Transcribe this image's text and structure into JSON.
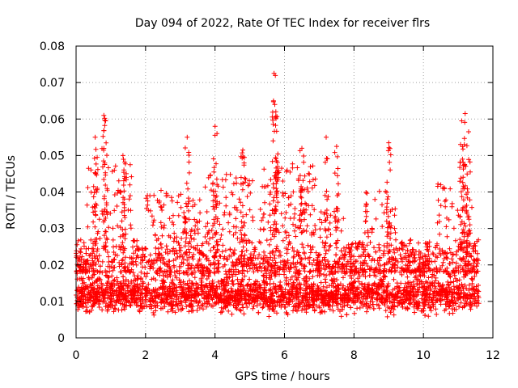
{
  "chart_data": {
    "type": "scatter",
    "title": "Day 094 of 2022, Rate Of TEC Index for receiver flrs",
    "xlabel": "GPS time / hours",
    "ylabel": "ROTI / TECUs",
    "xlim": [
      0,
      12
    ],
    "ylim": [
      0,
      0.08
    ],
    "x_ticks": [
      0,
      2,
      4,
      6,
      8,
      10,
      12
    ],
    "y_ticks": [
      0,
      0.01,
      0.02,
      0.03,
      0.04,
      0.05,
      0.06,
      0.07,
      0.08
    ],
    "x_tick_labels": [
      "0",
      "2",
      "4",
      "6",
      "8",
      "10",
      "12"
    ],
    "y_tick_labels": [
      "0",
      "0.01",
      "0.02",
      "0.03",
      "0.04",
      "0.05",
      "0.06",
      "0.07",
      "0.08"
    ],
    "grid": true,
    "marker": "+",
    "color": "#ff0000",
    "series": [
      {
        "name": "ROTI",
        "x_range_hours": [
          0,
          11.6
        ],
        "typical_band": [
          0.005,
          0.02
        ],
        "peaks": [
          {
            "x": 0.8,
            "y": 0.061
          },
          {
            "x": 0.85,
            "y": 0.0595
          },
          {
            "x": 0.55,
            "y": 0.055
          },
          {
            "x": 1.35,
            "y": 0.05
          },
          {
            "x": 3.2,
            "y": 0.055
          },
          {
            "x": 4.0,
            "y": 0.058
          },
          {
            "x": 4.8,
            "y": 0.0515
          },
          {
            "x": 5.7,
            "y": 0.0725
          },
          {
            "x": 5.72,
            "y": 0.064
          },
          {
            "x": 5.75,
            "y": 0.062
          },
          {
            "x": 6.5,
            "y": 0.052
          },
          {
            "x": 7.2,
            "y": 0.055
          },
          {
            "x": 7.5,
            "y": 0.0525
          },
          {
            "x": 9.0,
            "y": 0.0535
          },
          {
            "x": 11.1,
            "y": 0.0595
          },
          {
            "x": 11.2,
            "y": 0.0615
          },
          {
            "x": 11.3,
            "y": 0.0565
          }
        ]
      }
    ]
  }
}
